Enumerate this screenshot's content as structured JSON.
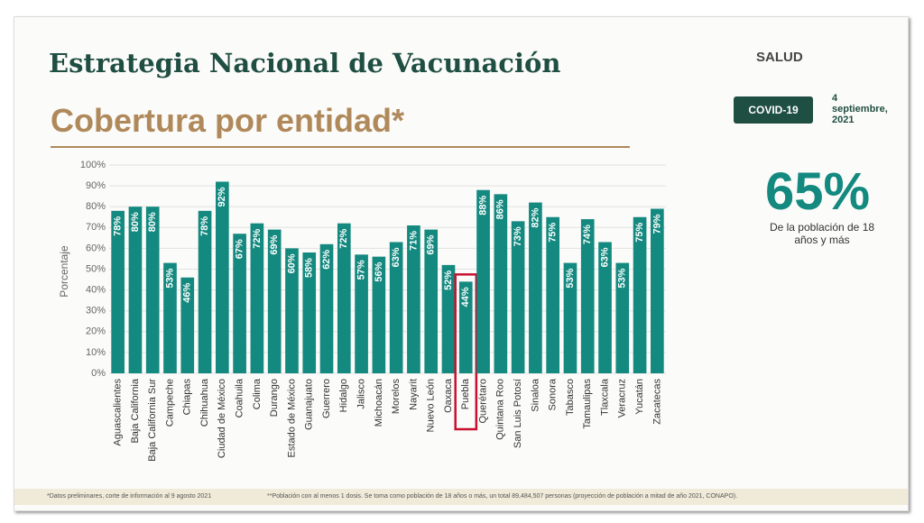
{
  "header": {
    "title": "Estrategia Nacional de Vacunación",
    "subtitle": "Cobertura por entidad*",
    "logo_text": "SALUD",
    "badge": "COVID-19",
    "date": "4 septiembre, 2021"
  },
  "highlight": {
    "value": 65,
    "value_label": "65%",
    "caption": "De la población de 18 años y más"
  },
  "footnotes": [
    "*Datos preliminares, corte de información al 9 agosto 2021",
    "**Población con al menos 1 dosis. Se toma como población de 18 años o más, un total 89,484,507 personas (proyección de población a mitad de año 2021, CONAPO)."
  ],
  "chart_data": {
    "type": "bar",
    "ylabel": "Porcentaje",
    "categories": [
      "Aguascalientes",
      "Baja California",
      "Baja California Sur",
      "Campeche",
      "Chiapas",
      "Chihuahua",
      "Ciudad de México",
      "Coahuila",
      "Colima",
      "Durango",
      "Estado de México",
      "Guanajuato",
      "Guerrero",
      "Hidalgo",
      "Jalisco",
      "Michoacán",
      "Morelos",
      "Nayarit",
      "Nuevo León",
      "Oaxaca",
      "Puebla",
      "Querétaro",
      "Quintana Roo",
      "San Luis Potosí",
      "Sinaloa",
      "Sonora",
      "Tabasco",
      "Tamaulipas",
      "Tlaxcala",
      "Veracruz",
      "Yucatán",
      "Zacatecas"
    ],
    "values": [
      78,
      80,
      80,
      53,
      46,
      78,
      92,
      67,
      72,
      69,
      60,
      58,
      62,
      72,
      57,
      56,
      63,
      71,
      69,
      52,
      44,
      88,
      86,
      73,
      82,
      75,
      53,
      74,
      63,
      53,
      75,
      79
    ],
    "value_labels": [
      "78%",
      "80%",
      "80%",
      "53%",
      "46%",
      "78%",
      "92%",
      "67%",
      "72%",
      "69%",
      "60%",
      "58%",
      "62%",
      "72%",
      "57%",
      "56%",
      "63%",
      "71%",
      "69%",
      "52%",
      "44%",
      "88%",
      "86%",
      "73%",
      "82%",
      "75%",
      "53%",
      "74%",
      "63%",
      "53%",
      "75%",
      "79%"
    ],
    "color": "#13897f",
    "highlight_category": "Puebla",
    "highlight_color": "#c8102e",
    "ylim": [
      0,
      100
    ],
    "yticks": [
      {
        "value": 0,
        "label": "0%"
      },
      {
        "value": 10,
        "label": "10%"
      },
      {
        "value": 20,
        "label": "20%"
      },
      {
        "value": 30,
        "label": "30%"
      },
      {
        "value": 40,
        "label": "40%"
      },
      {
        "value": 50,
        "label": "50%"
      },
      {
        "value": 60,
        "label": "60%"
      },
      {
        "value": 70,
        "label": "70%"
      },
      {
        "value": 80,
        "label": "80%"
      },
      {
        "value": 90,
        "label": "90%"
      },
      {
        "value": 100,
        "label": "100%"
      }
    ],
    "grid": true
  }
}
